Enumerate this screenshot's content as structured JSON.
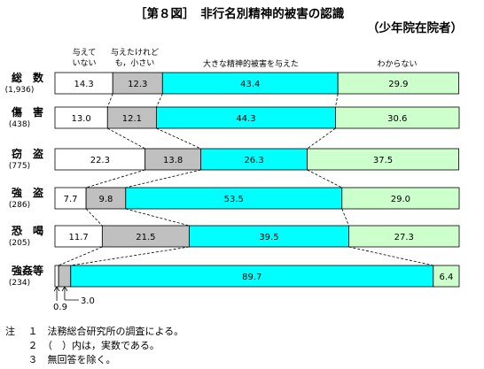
{
  "title": "［第８図］　非行名別精神的被害の認識",
  "subtitle": "（少年院在院者）",
  "legend_labels": [
    [
      "与えて",
      "いない"
    ],
    [
      "与えたけれど",
      "も，小さい"
    ],
    [
      "大きな精神的被害を与えた"
    ],
    [
      "わからない"
    ]
  ],
  "colors": [
    "#ffffff",
    "#c0c0c0",
    "#00ffff",
    "#ccffcc"
  ],
  "chart_data": {
    "type": "bar",
    "orientation": "horizontal",
    "stacked": true,
    "percent": true,
    "title": "［第８図］　非行名別精神的被害の認識",
    "subtitle": "（少年院在院者）",
    "categories": [
      "総　数",
      "傷　害",
      "窃　盗",
      "強　盗",
      "恐　喝",
      "強姦等"
    ],
    "counts": [
      "(1,936)",
      "(438)",
      "(775)",
      "(286)",
      "(205)",
      "(234)"
    ],
    "series": [
      {
        "name": "与えていない",
        "values": [
          14.3,
          13.0,
          22.3,
          7.7,
          11.7,
          0.9
        ]
      },
      {
        "name": "与えたけれども，小さい",
        "values": [
          12.3,
          12.1,
          13.8,
          9.8,
          21.5,
          3.0
        ]
      },
      {
        "name": "大きな精神的被害を与えた",
        "values": [
          43.4,
          44.3,
          26.3,
          53.5,
          39.5,
          89.7
        ]
      },
      {
        "name": "わからない",
        "values": [
          29.9,
          30.6,
          37.5,
          29.0,
          27.3,
          6.4
        ]
      }
    ],
    "xlim": [
      0,
      100
    ],
    "small_value_callouts": [
      "0.9",
      "3.0"
    ]
  },
  "notes": [
    [
      "注",
      "１",
      "法務総合研究所の調査による。"
    ],
    [
      "",
      "２",
      "（　）内は，実数である。"
    ],
    [
      "",
      "３",
      "無回答を除く。"
    ]
  ]
}
